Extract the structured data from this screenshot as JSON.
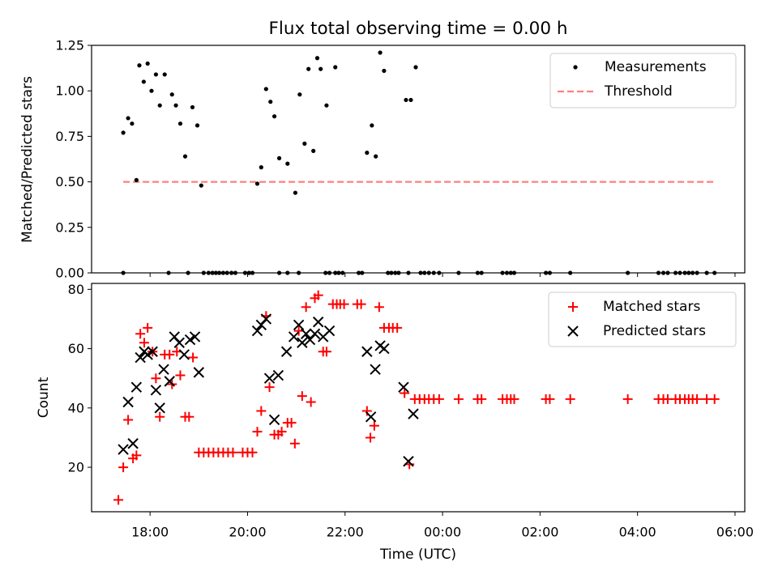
{
  "title": "Flux total observing time = 0.00 h",
  "colors": {
    "measurement": "#000000",
    "threshold": "#ff7f7f",
    "matched": "#ff0000",
    "predicted": "#000000",
    "frame": "#000000"
  },
  "chart_data": [
    {
      "type": "scatter",
      "panel": "top",
      "ylabel": "Matched/Predicted stars",
      "xlim": [
        16.8,
        30.2
      ],
      "ylim": [
        0,
        1.25
      ],
      "yticks": [
        0.0,
        0.25,
        0.5,
        0.75,
        1.0,
        1.25
      ],
      "ytick_labels": [
        "0.00",
        "0.25",
        "0.50",
        "0.75",
        "1.00",
        "1.25"
      ],
      "legend_position": "top-right",
      "threshold": {
        "name": "Threshold",
        "y": 0.5,
        "x_range": [
          17.45,
          29.6
        ]
      },
      "series": [
        {
          "name": "Measurements",
          "points": [
            [
              17.45,
              0.77
            ],
            [
              17.55,
              0.85
            ],
            [
              17.63,
              0.82
            ],
            [
              17.72,
              0.51
            ],
            [
              17.78,
              1.14
            ],
            [
              17.87,
              1.05
            ],
            [
              17.95,
              1.15
            ],
            [
              18.03,
              1.0
            ],
            [
              18.12,
              1.09
            ],
            [
              18.2,
              0.92
            ],
            [
              18.3,
              1.09
            ],
            [
              18.45,
              0.98
            ],
            [
              18.53,
              0.92
            ],
            [
              18.62,
              0.82
            ],
            [
              18.72,
              0.64
            ],
            [
              18.87,
              0.91
            ],
            [
              18.97,
              0.81
            ],
            [
              19.05,
              0.48
            ],
            [
              20.2,
              0.49
            ],
            [
              20.28,
              0.58
            ],
            [
              20.38,
              1.01
            ],
            [
              20.47,
              0.94
            ],
            [
              20.55,
              0.86
            ],
            [
              20.65,
              0.63
            ],
            [
              20.82,
              0.6
            ],
            [
              20.98,
              0.44
            ],
            [
              21.07,
              0.98
            ],
            [
              21.17,
              0.71
            ],
            [
              21.25,
              1.12
            ],
            [
              21.35,
              0.67
            ],
            [
              21.43,
              1.18
            ],
            [
              21.5,
              1.12
            ],
            [
              21.62,
              0.92
            ],
            [
              21.8,
              1.13
            ],
            [
              22.45,
              0.66
            ],
            [
              22.55,
              0.81
            ],
            [
              22.63,
              0.64
            ],
            [
              22.72,
              1.21
            ],
            [
              22.8,
              1.11
            ],
            [
              23.25,
              0.95
            ],
            [
              23.35,
              0.95
            ],
            [
              23.45,
              1.13
            ],
            [
              17.45,
              0
            ],
            [
              18.38,
              0
            ],
            [
              18.78,
              0
            ],
            [
              19.1,
              0
            ],
            [
              19.2,
              0
            ],
            [
              19.28,
              0
            ],
            [
              19.35,
              0
            ],
            [
              19.42,
              0
            ],
            [
              19.5,
              0
            ],
            [
              19.58,
              0
            ],
            [
              19.67,
              0
            ],
            [
              19.75,
              0
            ],
            [
              19.95,
              0
            ],
            [
              20.03,
              0
            ],
            [
              20.1,
              0
            ],
            [
              20.65,
              0
            ],
            [
              20.82,
              0
            ],
            [
              21.05,
              0
            ],
            [
              21.6,
              0
            ],
            [
              21.68,
              0
            ],
            [
              21.8,
              0
            ],
            [
              21.87,
              0
            ],
            [
              21.95,
              0
            ],
            [
              22.28,
              0
            ],
            [
              22.35,
              0
            ],
            [
              22.88,
              0
            ],
            [
              22.95,
              0
            ],
            [
              23.03,
              0
            ],
            [
              23.1,
              0
            ],
            [
              23.3,
              0
            ],
            [
              23.55,
              0
            ],
            [
              23.63,
              0
            ],
            [
              23.72,
              0
            ],
            [
              23.82,
              0
            ],
            [
              23.93,
              0
            ],
            [
              24.33,
              0
            ],
            [
              24.72,
              0
            ],
            [
              24.8,
              0
            ],
            [
              25.23,
              0
            ],
            [
              25.32,
              0
            ],
            [
              25.4,
              0
            ],
            [
              25.47,
              0
            ],
            [
              26.12,
              0
            ],
            [
              26.2,
              0
            ],
            [
              26.62,
              0
            ],
            [
              27.8,
              0
            ],
            [
              28.43,
              0
            ],
            [
              28.53,
              0
            ],
            [
              28.62,
              0
            ],
            [
              28.78,
              0
            ],
            [
              28.87,
              0
            ],
            [
              28.97,
              0
            ],
            [
              29.05,
              0
            ],
            [
              29.13,
              0
            ],
            [
              29.22,
              0
            ],
            [
              29.42,
              0
            ],
            [
              29.58,
              0
            ]
          ]
        }
      ]
    },
    {
      "type": "scatter",
      "panel": "bottom",
      "xlabel": "Time (UTC)",
      "ylabel": "Count",
      "xlim": [
        16.8,
        30.2
      ],
      "ylim": [
        5,
        82
      ],
      "xticks": [
        18,
        20,
        22,
        24,
        26,
        28,
        30
      ],
      "xtick_labels": [
        "18:00",
        "20:00",
        "22:00",
        "00:00",
        "02:00",
        "04:00",
        "06:00"
      ],
      "yticks": [
        20,
        40,
        60,
        80
      ],
      "ytick_labels": [
        "20",
        "40",
        "60",
        "80"
      ],
      "legend_position": "top-right",
      "series": [
        {
          "name": "Matched stars",
          "marker": "+",
          "points": [
            [
              17.35,
              9
            ],
            [
              17.45,
              20
            ],
            [
              17.55,
              36
            ],
            [
              17.65,
              23
            ],
            [
              17.72,
              24
            ],
            [
              17.8,
              65
            ],
            [
              17.88,
              62
            ],
            [
              17.95,
              67
            ],
            [
              18.05,
              59
            ],
            [
              18.12,
              50
            ],
            [
              18.2,
              37
            ],
            [
              18.3,
              58
            ],
            [
              18.4,
              58
            ],
            [
              18.45,
              48
            ],
            [
              18.55,
              59
            ],
            [
              18.62,
              51
            ],
            [
              18.72,
              37
            ],
            [
              18.8,
              37
            ],
            [
              18.88,
              57
            ],
            [
              19.0,
              25
            ],
            [
              19.1,
              25
            ],
            [
              19.2,
              25
            ],
            [
              19.3,
              25
            ],
            [
              19.4,
              25
            ],
            [
              19.5,
              25
            ],
            [
              19.6,
              25
            ],
            [
              19.7,
              25
            ],
            [
              19.9,
              25
            ],
            [
              20.0,
              25
            ],
            [
              20.1,
              25
            ],
            [
              20.2,
              32
            ],
            [
              20.28,
              39
            ],
            [
              20.38,
              71
            ],
            [
              20.45,
              47
            ],
            [
              20.55,
              31
            ],
            [
              20.63,
              31
            ],
            [
              20.7,
              32
            ],
            [
              20.82,
              35
            ],
            [
              20.9,
              35
            ],
            [
              20.97,
              28
            ],
            [
              21.05,
              66
            ],
            [
              21.12,
              44
            ],
            [
              21.2,
              74
            ],
            [
              21.3,
              42
            ],
            [
              21.38,
              77
            ],
            [
              21.45,
              78
            ],
            [
              21.55,
              59
            ],
            [
              21.62,
              59
            ],
            [
              21.75,
              75
            ],
            [
              21.83,
              75
            ],
            [
              21.9,
              75
            ],
            [
              21.98,
              75
            ],
            [
              22.25,
              75
            ],
            [
              22.33,
              75
            ],
            [
              22.45,
              39
            ],
            [
              22.52,
              30
            ],
            [
              22.6,
              34
            ],
            [
              22.7,
              74
            ],
            [
              22.8,
              67
            ],
            [
              22.9,
              67
            ],
            [
              22.98,
              67
            ],
            [
              23.07,
              67
            ],
            [
              23.22,
              45
            ],
            [
              23.32,
              21
            ],
            [
              23.43,
              43
            ],
            [
              23.53,
              43
            ],
            [
              23.63,
              43
            ],
            [
              23.72,
              43
            ],
            [
              23.82,
              43
            ],
            [
              23.93,
              43
            ],
            [
              24.33,
              43
            ],
            [
              24.72,
              43
            ],
            [
              24.8,
              43
            ],
            [
              25.23,
              43
            ],
            [
              25.32,
              43
            ],
            [
              25.4,
              43
            ],
            [
              25.47,
              43
            ],
            [
              26.12,
              43
            ],
            [
              26.2,
              43
            ],
            [
              26.62,
              43
            ],
            [
              27.8,
              43
            ],
            [
              28.43,
              43
            ],
            [
              28.53,
              43
            ],
            [
              28.62,
              43
            ],
            [
              28.78,
              43
            ],
            [
              28.87,
              43
            ],
            [
              28.97,
              43
            ],
            [
              29.05,
              43
            ],
            [
              29.13,
              43
            ],
            [
              29.22,
              43
            ],
            [
              29.42,
              43
            ],
            [
              29.58,
              43
            ]
          ]
        },
        {
          "name": "Predicted stars",
          "marker": "x",
          "points": [
            [
              17.45,
              26
            ],
            [
              17.55,
              42
            ],
            [
              17.65,
              28
            ],
            [
              17.72,
              47
            ],
            [
              17.8,
              57
            ],
            [
              17.88,
              59
            ],
            [
              17.95,
              58
            ],
            [
              18.05,
              59
            ],
            [
              18.12,
              46
            ],
            [
              18.2,
              40
            ],
            [
              18.28,
              53
            ],
            [
              18.4,
              49
            ],
            [
              18.5,
              64
            ],
            [
              18.6,
              62
            ],
            [
              18.7,
              58
            ],
            [
              18.82,
              63
            ],
            [
              18.92,
              64
            ],
            [
              19.0,
              52
            ],
            [
              20.2,
              66
            ],
            [
              20.28,
              68
            ],
            [
              20.38,
              70
            ],
            [
              20.45,
              50
            ],
            [
              20.55,
              36
            ],
            [
              20.63,
              51
            ],
            [
              20.8,
              59
            ],
            [
              20.95,
              64
            ],
            [
              21.05,
              68
            ],
            [
              21.12,
              62
            ],
            [
              21.2,
              65
            ],
            [
              21.28,
              63
            ],
            [
              21.38,
              65
            ],
            [
              21.45,
              69
            ],
            [
              21.55,
              64
            ],
            [
              21.68,
              66
            ],
            [
              22.45,
              59
            ],
            [
              22.53,
              37
            ],
            [
              22.62,
              53
            ],
            [
              22.72,
              61
            ],
            [
              22.8,
              60
            ],
            [
              23.2,
              47
            ],
            [
              23.3,
              22
            ],
            [
              23.4,
              38
            ]
          ]
        }
      ]
    }
  ]
}
